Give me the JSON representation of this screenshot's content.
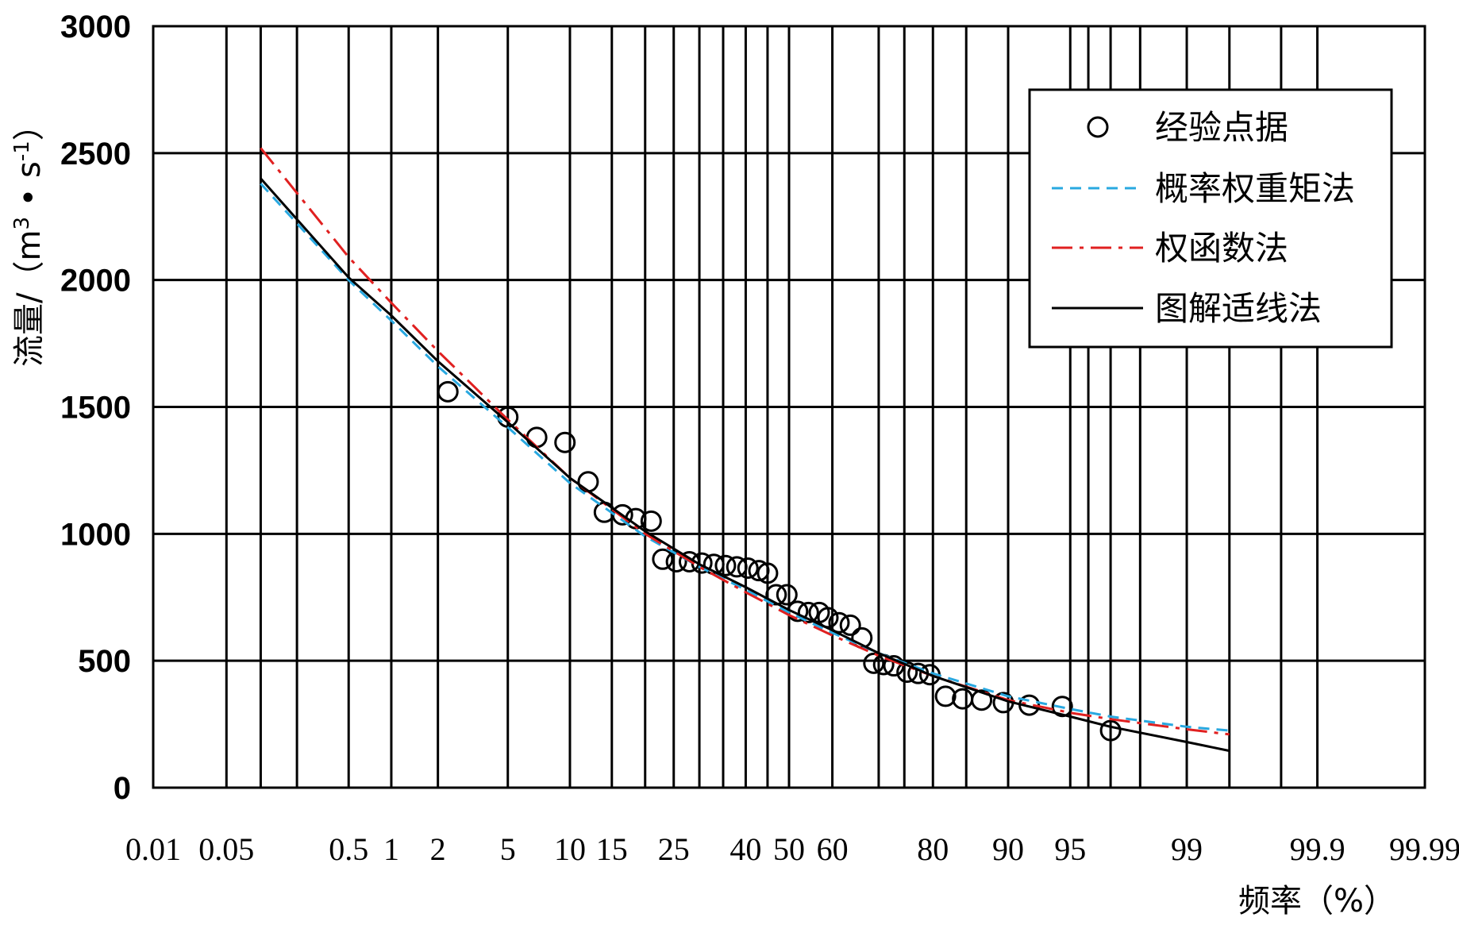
{
  "chart_data": {
    "type": "line",
    "xlabel": "频率（%）",
    "ylabel_main": "流量/（m",
    "ylabel_sup1": "3",
    "ylabel_mid": " • s",
    "ylabel_sup2": "-1",
    "ylabel_end": "）",
    "x_scale": "probability",
    "xlim": [
      0.01,
      99.99
    ],
    "ylim": [
      0,
      3000
    ],
    "grid": true,
    "legend_position": "top-right",
    "x_tick_labels": [
      "0.01",
      "0.05",
      "0.5",
      "1",
      "2",
      "5",
      "10",
      "15",
      "25",
      "40",
      "50",
      "60",
      "80",
      "90",
      "95",
      "99",
      "99.9",
      "99.99"
    ],
    "x_gridlines": [
      0.01,
      0.05,
      0.1,
      0.2,
      0.5,
      1,
      2,
      5,
      10,
      15,
      20,
      25,
      30,
      35,
      40,
      45,
      50,
      60,
      70,
      75,
      80,
      85,
      90,
      95,
      96,
      97,
      98,
      99,
      99.5,
      99.8,
      99.9,
      99.99
    ],
    "y_ticks": [
      0,
      500,
      1000,
      1500,
      2000,
      2500,
      3000
    ],
    "series": [
      {
        "name": "经验点据",
        "style": "marker",
        "color": "#000000",
        "points": [
          [
            2.3,
            1560
          ],
          [
            5.0,
            1460
          ],
          [
            7.0,
            1380
          ],
          [
            9.5,
            1360
          ],
          [
            12.0,
            1205
          ],
          [
            14.0,
            1085
          ],
          [
            16.5,
            1075
          ],
          [
            18.5,
            1060
          ],
          [
            21.0,
            1050
          ],
          [
            23.0,
            900
          ],
          [
            25.5,
            890
          ],
          [
            28.0,
            890
          ],
          [
            30.5,
            885
          ],
          [
            33.0,
            880
          ],
          [
            35.5,
            875
          ],
          [
            38.0,
            870
          ],
          [
            40.5,
            865
          ],
          [
            43.0,
            855
          ],
          [
            45.0,
            845
          ],
          [
            47.0,
            760
          ],
          [
            49.5,
            760
          ],
          [
            52.0,
            695
          ],
          [
            54.5,
            690
          ],
          [
            57.0,
            690
          ],
          [
            59.0,
            670
          ],
          [
            61.5,
            650
          ],
          [
            64.0,
            640
          ],
          [
            66.5,
            590
          ],
          [
            69.0,
            490
          ],
          [
            71.0,
            485
          ],
          [
            73.0,
            480
          ],
          [
            75.5,
            455
          ],
          [
            77.5,
            450
          ],
          [
            79.5,
            445
          ],
          [
            82.0,
            360
          ],
          [
            84.5,
            350
          ],
          [
            87.0,
            345
          ],
          [
            89.5,
            335
          ],
          [
            92.0,
            325
          ],
          [
            94.5,
            320
          ],
          [
            97.0,
            225
          ]
        ]
      },
      {
        "name": "概率权重矩法",
        "style": "dashed",
        "color": "#29a8e0",
        "points": [
          [
            0.1,
            2380
          ],
          [
            0.5,
            2000
          ],
          [
            1,
            1840
          ],
          [
            2,
            1660
          ],
          [
            5,
            1420
          ],
          [
            10,
            1200
          ],
          [
            20,
            990
          ],
          [
            30,
            870
          ],
          [
            40,
            780
          ],
          [
            50,
            690
          ],
          [
            60,
            610
          ],
          [
            70,
            530
          ],
          [
            80,
            450
          ],
          [
            90,
            360
          ],
          [
            95,
            310
          ],
          [
            97,
            280
          ],
          [
            99,
            240
          ],
          [
            99.5,
            225
          ]
        ]
      },
      {
        "name": "权函数法",
        "style": "dashdot",
        "color": "#e02020",
        "points": [
          [
            0.1,
            2520
          ],
          [
            0.5,
            2090
          ],
          [
            1,
            1910
          ],
          [
            2,
            1720
          ],
          [
            5,
            1450
          ],
          [
            10,
            1220
          ],
          [
            20,
            1000
          ],
          [
            30,
            870
          ],
          [
            40,
            770
          ],
          [
            50,
            680
          ],
          [
            60,
            600
          ],
          [
            70,
            520
          ],
          [
            80,
            440
          ],
          [
            90,
            345
          ],
          [
            95,
            295
          ],
          [
            97,
            270
          ],
          [
            99,
            230
          ],
          [
            99.5,
            210
          ]
        ]
      },
      {
        "name": "图解适线法",
        "style": "solid",
        "color": "#000000",
        "points": [
          [
            0.1,
            2400
          ],
          [
            0.5,
            2010
          ],
          [
            1,
            1860
          ],
          [
            2,
            1680
          ],
          [
            5,
            1440
          ],
          [
            10,
            1220
          ],
          [
            20,
            1010
          ],
          [
            30,
            880
          ],
          [
            40,
            790
          ],
          [
            50,
            700
          ],
          [
            60,
            620
          ],
          [
            70,
            530
          ],
          [
            80,
            440
          ],
          [
            90,
            340
          ],
          [
            95,
            280
          ],
          [
            97,
            240
          ],
          [
            99,
            180
          ],
          [
            99.5,
            145
          ]
        ]
      }
    ]
  }
}
